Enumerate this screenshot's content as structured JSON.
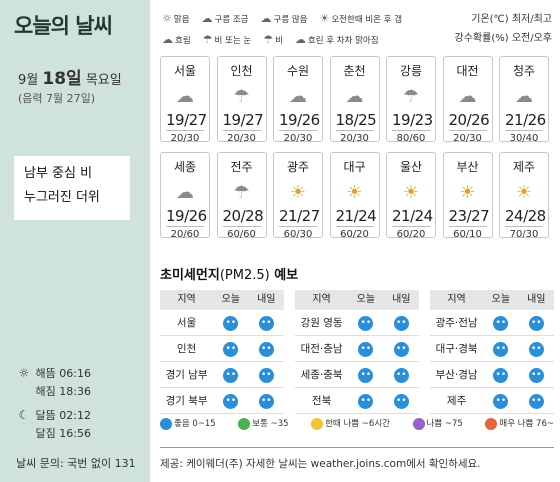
{
  "title": "오늘의 날씨",
  "date": {
    "month": "9월",
    "day": "18일",
    "weekday": "목요일",
    "lunar": "(음력 7월 27일)"
  },
  "headline": {
    "line1": "남부 중심 비",
    "line2": "누그러진 더위"
  },
  "sun": {
    "rise_label": "해뜸",
    "rise": "06:16",
    "set_label": "해짐",
    "set": "18:36"
  },
  "moon": {
    "rise_label": "달뜸",
    "rise": "02:12",
    "set_label": "달짐",
    "set": "16:56"
  },
  "contact": "날씨 문의: 국번 없이 131",
  "legend": [
    {
      "icon": "sun-icon",
      "glyph": "☼",
      "label": "맑음"
    },
    {
      "icon": "cloud-sun-icon",
      "glyph": "☁",
      "label": "구름 조금"
    },
    {
      "icon": "cloudy-icon",
      "glyph": "☁",
      "label": "구름 많음"
    },
    {
      "icon": "afternoon-rain-clear-icon",
      "glyph": "☀",
      "label": "오전한때 비온 후 갬"
    },
    {
      "icon": "overcast-icon",
      "glyph": "☁",
      "label": "흐림"
    },
    {
      "icon": "rain-or-snow-icon",
      "glyph": "☂",
      "label": "비 또는 눈"
    },
    {
      "icon": "rain-icon",
      "glyph": "☂",
      "label": "비"
    },
    {
      "icon": "clearing-after-icon",
      "glyph": "☁",
      "label": "흐린 후 차차 맑아짐"
    }
  ],
  "units": {
    "line1": "기온(℃) 최저/최고",
    "line2": "강수확률(%) 오전/오후"
  },
  "cities": [
    {
      "name": "서울",
      "wx": "cloudy",
      "temp": "19/27",
      "rain": "20/30"
    },
    {
      "name": "인천",
      "wx": "rain",
      "temp": "19/27",
      "rain": "20/30"
    },
    {
      "name": "수원",
      "wx": "cloudy",
      "temp": "19/26",
      "rain": "20/30"
    },
    {
      "name": "춘천",
      "wx": "cloudy",
      "temp": "18/25",
      "rain": "20/30"
    },
    {
      "name": "강릉",
      "wx": "rain",
      "temp": "19/23",
      "rain": "80/60"
    },
    {
      "name": "대전",
      "wx": "cloudy",
      "temp": "20/26",
      "rain": "20/30"
    },
    {
      "name": "청주",
      "wx": "cloudy",
      "temp": "21/26",
      "rain": "30/40"
    },
    {
      "name": "세종",
      "wx": "cloudy",
      "temp": "19/26",
      "rain": "20/60"
    },
    {
      "name": "전주",
      "wx": "rain",
      "temp": "20/28",
      "rain": "60/60"
    },
    {
      "name": "광주",
      "wx": "sun",
      "temp": "21/27",
      "rain": "60/30"
    },
    {
      "name": "대구",
      "wx": "sun",
      "temp": "21/24",
      "rain": "60/20"
    },
    {
      "name": "울산",
      "wx": "sun",
      "temp": "21/24",
      "rain": "60/20"
    },
    {
      "name": "부산",
      "wx": "sun",
      "temp": "23/27",
      "rain": "60/10"
    },
    {
      "name": "제주",
      "wx": "sun",
      "temp": "24/28",
      "rain": "70/30"
    }
  ],
  "dust": {
    "title": "초미세먼지",
    "title_sub": "(PM2.5)",
    "title_tail": " 예보",
    "headers": [
      "지역",
      "오늘",
      "내일"
    ],
    "columns": [
      [
        {
          "region": "서울"
        },
        {
          "region": "인천"
        },
        {
          "region": "경기 남부"
        },
        {
          "region": "경기 북부"
        }
      ],
      [
        {
          "region": "강원 영동"
        },
        {
          "region": "대전·충남"
        },
        {
          "region": "세종·충북"
        },
        {
          "region": "전북"
        }
      ],
      [
        {
          "region": "광주·전남"
        },
        {
          "region": "대구·경북"
        },
        {
          "region": "부산·경남"
        },
        {
          "region": "제주"
        }
      ]
    ],
    "legend": [
      {
        "label": "좋음 0~15",
        "color": "#2a8fd8"
      },
      {
        "label": "보통 ~35",
        "color": "#4cb050"
      },
      {
        "label": "한때 나쁨 ~6시간",
        "color": "#f2c230"
      },
      {
        "label": "나쁨 ~75",
        "color": "#9a5fc9"
      },
      {
        "label": "매우 나쁨 76~",
        "color": "#e5643a"
      }
    ]
  },
  "footer": "제공: 케이웨더(주) 자세한 날씨는 weather.joins.com에서 확인하세요."
}
